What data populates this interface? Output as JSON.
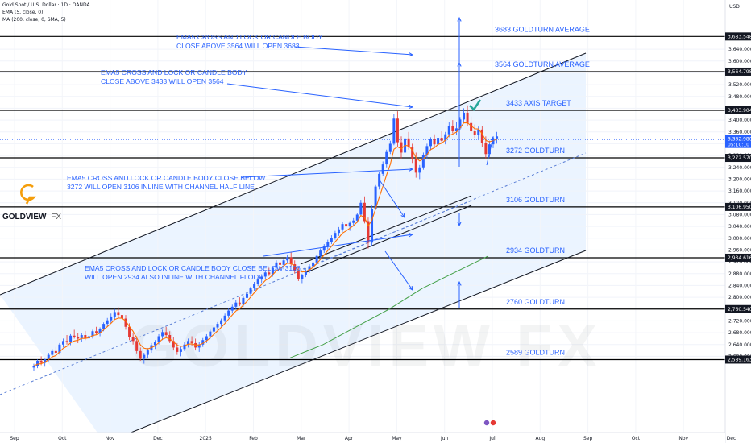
{
  "header": {
    "symbol_line": "Gold Spot / U.S. Dollar · 1D · OANDA",
    "ema_line": "EMA (5, close, 0)",
    "ma_line": "MA (200, close, 0, SMA, 5)"
  },
  "currency": "USD",
  "logo": {
    "brand": "GOLDVIEW",
    "suffix": "FX"
  },
  "watermark": "GOLDVIEW FX",
  "colors": {
    "up_candle": "#2962ff",
    "down_candle": "#e53935",
    "ema": "#ff6f00",
    "sma": "#43a047",
    "annotation": "#2962ff",
    "channel_fill": "#e3efff",
    "level_line": "#000000",
    "badge": "#131722",
    "check": "#26a69a",
    "logo": "#f59e0b"
  },
  "chart_data": {
    "type": "candlestick",
    "x_axis": {
      "ticks": [
        "Sep",
        "Oct",
        "Nov",
        "Dec",
        "2025",
        "Feb",
        "Mar",
        "Apr",
        "May",
        "Jun",
        "Jul",
        "Aug",
        "Sep",
        "Oct",
        "Nov",
        "Dec"
      ]
    },
    "y_axis": {
      "ylim": [
        2580,
        3700
      ],
      "ticks": [
        "3,640.000",
        "3,600.000",
        "3,560.000",
        "3,520.000",
        "3,480.000",
        "3,440.000",
        "3,400.000",
        "3,360.000",
        "3,320.000",
        "3,280.000",
        "3,240.000",
        "3,200.000",
        "3,160.000",
        "3,120.000",
        "3,080.000",
        "3,040.000",
        "3,000.000",
        "2,960.000",
        "2,920.000",
        "2,880.000",
        "2,840.000",
        "2,800.000",
        "2,760.000",
        "2,720.000",
        "2,680.000",
        "2,640.000",
        "2,600.000"
      ]
    },
    "current_price": {
      "value": "3,332.980",
      "countdown": "05:10:10"
    },
    "levels": [
      {
        "value": 3683,
        "badge": "3,683.548",
        "label": "3683 GOLDTURN AVERAGE"
      },
      {
        "value": 3564,
        "badge": "3,564.798",
        "label": "3564 GOLDTURN AVERAGE"
      },
      {
        "value": 3433,
        "badge": "3,433.904",
        "label": "3433 AXIS TARGET"
      },
      {
        "value": 3272,
        "badge": "3,272.570",
        "label": "3272 GOLDTURN"
      },
      {
        "value": 3106,
        "badge": "3,106.950",
        "label": "3106 GOLDTURN"
      },
      {
        "value": 2934,
        "badge": "2,934.616",
        "label": "2934 GOLDTURN"
      },
      {
        "value": 2760,
        "badge": "2,760.540",
        "label": "2760 GOLDTURN"
      },
      {
        "value": 2589,
        "badge": "2,589.163",
        "label": "2589 GOLDTURN"
      }
    ],
    "annotations": [
      {
        "lines": [
          "EMA5 CROSS AND LOCK OR CANDLE BODY",
          "CLOSE ABOVE 3564 WILL OPEN 3683"
        ]
      },
      {
        "lines": [
          "EMA5 CROSS AND LOCK OR CANDLE BODY",
          "CLOSE ABOVE 3433 WILL OPEN 3564"
        ]
      },
      {
        "lines": [
          "EMA5 CROSS AND LOCK OR CANDLE BODY CLOSE BELOW",
          "3272 WILL OPEN 3106 INLINE WITH CHANNEL HALF LINE"
        ]
      },
      {
        "lines": [
          "EMA5 CROSS AND LOCK OR CANDLE BODY CLOSE BELOW 3106",
          "WILL OPEN 2934 ALSO INLINE WITH CHANNEL FLOOR"
        ]
      }
    ],
    "series": [
      {
        "kind": "candles",
        "ohlc": [
          [
            2562,
            2575,
            2550,
            2568
          ],
          [
            2568,
            2590,
            2560,
            2585
          ],
          [
            2585,
            2600,
            2570,
            2578
          ],
          [
            2578,
            2592,
            2565,
            2590
          ],
          [
            2590,
            2612,
            2583,
            2605
          ],
          [
            2605,
            2625,
            2598,
            2618
          ],
          [
            2618,
            2632,
            2605,
            2612
          ],
          [
            2612,
            2645,
            2606,
            2640
          ],
          [
            2640,
            2660,
            2630,
            2652
          ],
          [
            2652,
            2672,
            2640,
            2648
          ],
          [
            2648,
            2675,
            2638,
            2670
          ],
          [
            2670,
            2690,
            2660,
            2664
          ],
          [
            2664,
            2680,
            2645,
            2660
          ],
          [
            2660,
            2678,
            2650,
            2672
          ],
          [
            2672,
            2686,
            2655,
            2661
          ],
          [
            2661,
            2675,
            2640,
            2668
          ],
          [
            2668,
            2690,
            2660,
            2685
          ],
          [
            2685,
            2700,
            2672,
            2678
          ],
          [
            2678,
            2698,
            2668,
            2692
          ],
          [
            2692,
            2715,
            2685,
            2710
          ],
          [
            2710,
            2730,
            2700,
            2722
          ],
          [
            2722,
            2745,
            2712,
            2735
          ],
          [
            2735,
            2760,
            2725,
            2750
          ],
          [
            2750,
            2766,
            2730,
            2740
          ],
          [
            2740,
            2758,
            2722,
            2728
          ],
          [
            2728,
            2740,
            2690,
            2700
          ],
          [
            2700,
            2712,
            2655,
            2665
          ],
          [
            2665,
            2680,
            2640,
            2652
          ],
          [
            2652,
            2668,
            2610,
            2618
          ],
          [
            2618,
            2630,
            2585,
            2592
          ],
          [
            2592,
            2612,
            2575,
            2605
          ],
          [
            2605,
            2628,
            2595,
            2620
          ],
          [
            2620,
            2645,
            2612,
            2638
          ],
          [
            2638,
            2655,
            2625,
            2648
          ],
          [
            2648,
            2675,
            2640,
            2668
          ],
          [
            2668,
            2690,
            2655,
            2682
          ],
          [
            2682,
            2700,
            2665,
            2672
          ],
          [
            2672,
            2685,
            2645,
            2652
          ],
          [
            2652,
            2665,
            2620,
            2630
          ],
          [
            2630,
            2645,
            2605,
            2615
          ],
          [
            2615,
            2632,
            2600,
            2625
          ],
          [
            2625,
            2648,
            2618,
            2640
          ],
          [
            2640,
            2660,
            2630,
            2652
          ],
          [
            2652,
            2668,
            2635,
            2645
          ],
          [
            2645,
            2660,
            2620,
            2630
          ],
          [
            2630,
            2648,
            2615,
            2640
          ],
          [
            2640,
            2662,
            2632,
            2655
          ],
          [
            2655,
            2675,
            2645,
            2668
          ],
          [
            2668,
            2690,
            2660,
            2684
          ],
          [
            2684,
            2705,
            2676,
            2698
          ],
          [
            2698,
            2716,
            2690,
            2710
          ],
          [
            2710,
            2728,
            2700,
            2722
          ],
          [
            2722,
            2745,
            2715,
            2738
          ],
          [
            2738,
            2762,
            2730,
            2755
          ],
          [
            2755,
            2775,
            2745,
            2768
          ],
          [
            2768,
            2790,
            2758,
            2782
          ],
          [
            2782,
            2800,
            2770,
            2775
          ],
          [
            2775,
            2805,
            2768,
            2798
          ],
          [
            2798,
            2820,
            2790,
            2812
          ],
          [
            2812,
            2836,
            2805,
            2830
          ],
          [
            2830,
            2852,
            2822,
            2845
          ],
          [
            2845,
            2868,
            2838,
            2860
          ],
          [
            2860,
            2878,
            2848,
            2870
          ],
          [
            2870,
            2890,
            2860,
            2884
          ],
          [
            2884,
            2900,
            2872,
            2878
          ],
          [
            2878,
            2905,
            2870,
            2900
          ],
          [
            2900,
            2925,
            2892,
            2918
          ],
          [
            2918,
            2935,
            2905,
            2910
          ],
          [
            2910,
            2932,
            2895,
            2925
          ],
          [
            2925,
            2945,
            2915,
            2935
          ],
          [
            2935,
            2952,
            2905,
            2912
          ],
          [
            2912,
            2925,
            2880,
            2888
          ],
          [
            2888,
            2900,
            2855,
            2862
          ],
          [
            2862,
            2880,
            2848,
            2875
          ],
          [
            2875,
            2895,
            2868,
            2890
          ],
          [
            2890,
            2912,
            2882,
            2905
          ],
          [
            2905,
            2925,
            2895,
            2918
          ],
          [
            2918,
            2945,
            2910,
            2940
          ],
          [
            2940,
            2965,
            2932,
            2958
          ],
          [
            2958,
            2980,
            2950,
            2972
          ],
          [
            2972,
            2995,
            2962,
            2988
          ],
          [
            2988,
            3010,
            2980,
            3002
          ],
          [
            3002,
            3025,
            2995,
            3018
          ],
          [
            3018,
            3038,
            3008,
            3030
          ],
          [
            3030,
            3055,
            3022,
            3048
          ],
          [
            3048,
            3062,
            3035,
            3040
          ],
          [
            3040,
            3058,
            3025,
            3052
          ],
          [
            3052,
            3068,
            3040,
            3060
          ],
          [
            3060,
            3085,
            3052,
            3080
          ],
          [
            3080,
            3130,
            3075,
            3120
          ],
          [
            3120,
            3142,
            3050,
            3058
          ],
          [
            3058,
            3070,
            2965,
            2985
          ],
          [
            2985,
            3110,
            2975,
            3100
          ],
          [
            3100,
            3180,
            3095,
            3175
          ],
          [
            3175,
            3225,
            3165,
            3218
          ],
          [
            3218,
            3260,
            3210,
            3250
          ],
          [
            3250,
            3300,
            3240,
            3292
          ],
          [
            3292,
            3330,
            3285,
            3320
          ],
          [
            3320,
            3420,
            3315,
            3405
          ],
          [
            3405,
            3430,
            3310,
            3325
          ],
          [
            3325,
            3345,
            3270,
            3290
          ],
          [
            3290,
            3350,
            3280,
            3338
          ],
          [
            3338,
            3360,
            3300,
            3310
          ],
          [
            3310,
            3320,
            3255,
            3268
          ],
          [
            3268,
            3290,
            3205,
            3222
          ],
          [
            3222,
            3248,
            3200,
            3240
          ],
          [
            3240,
            3290,
            3232,
            3282
          ],
          [
            3282,
            3320,
            3270,
            3312
          ],
          [
            3312,
            3342,
            3298,
            3335
          ],
          [
            3335,
            3352,
            3310,
            3318
          ],
          [
            3318,
            3350,
            3305,
            3340
          ],
          [
            3340,
            3362,
            3322,
            3330
          ],
          [
            3330,
            3360,
            3318,
            3352
          ],
          [
            3352,
            3392,
            3342,
            3380
          ],
          [
            3380,
            3400,
            3355,
            3362
          ],
          [
            3362,
            3392,
            3350,
            3372
          ],
          [
            3372,
            3410,
            3365,
            3402
          ],
          [
            3402,
            3440,
            3392,
            3425
          ],
          [
            3425,
            3450,
            3380,
            3390
          ],
          [
            3390,
            3412,
            3355,
            3362
          ],
          [
            3362,
            3385,
            3340,
            3350
          ],
          [
            3350,
            3378,
            3332,
            3368
          ],
          [
            3368,
            3380,
            3310,
            3322
          ],
          [
            3322,
            3345,
            3268,
            3285
          ],
          [
            3285,
            3330,
            3275,
            3318
          ],
          [
            3318,
            3345,
            3305,
            3338
          ],
          [
            3338,
            3360,
            3320,
            3345
          ]
        ]
      },
      {
        "kind": "ema",
        "name": "EMA (5, close, 0)"
      },
      {
        "kind": "sma",
        "name": "MA (200, close, 0, SMA, 5)",
        "points": [
          [
            0.0,
            2595
          ],
          [
            0.2,
            2640
          ],
          [
            0.4,
            2700
          ],
          [
            0.6,
            2760
          ],
          [
            0.8,
            2830
          ],
          [
            1.0,
            2885
          ],
          [
            1.2,
            2940
          ]
        ]
      }
    ]
  }
}
